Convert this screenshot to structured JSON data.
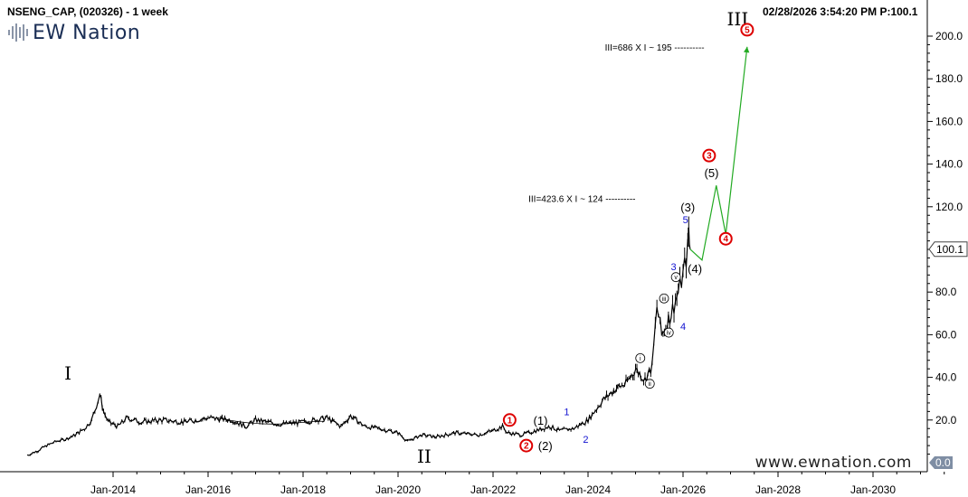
{
  "header": {
    "symbol": "NSENG_CAP, (020326) - 1 week",
    "timestamp": "02/28/2026 3:54:20 PM",
    "last_price_label": "P:100.1"
  },
  "logo": {
    "text": "EW Nation",
    "icon": "equalizer-bars-icon"
  },
  "footer": {
    "website": "www.ewnation.com"
  },
  "colors": {
    "price": "#000000",
    "projection": "#22aa22",
    "red_circle": "#dd0000",
    "blue_label": "#1010d0"
  },
  "chart_data": {
    "type": "line",
    "title": "NSENG_CAP, (020326) - 1 week",
    "y_axis": {
      "position": "right",
      "min": 0,
      "max": 210,
      "ticks": [
        "20.0",
        "40.0",
        "60.0",
        "80.0",
        "100.0",
        "120.0",
        "140.0",
        "160.0",
        "180.0",
        "200.0"
      ],
      "last_value_tag": "100.1",
      "bottom_tag": "0.0"
    },
    "x_axis": {
      "ticks": [
        "Jan-2014",
        "Jan-2016",
        "Jan-2018",
        "Jan-2020",
        "Jan-2022",
        "Jan-2024",
        "Jan-2026",
        "Jan-2028",
        "Jan-2030"
      ],
      "tick_years": [
        2014,
        2016,
        2018,
        2020,
        2022,
        2024,
        2026,
        2028,
        2030
      ]
    },
    "grid": false,
    "series": [
      {
        "style": "weekly-bars",
        "points": [
          [
            2012.2,
            3.5
          ],
          [
            2012.4,
            5.5
          ],
          [
            2012.6,
            8
          ],
          [
            2012.8,
            10
          ],
          [
            2013.0,
            11
          ],
          [
            2013.2,
            13
          ],
          [
            2013.4,
            16
          ],
          [
            2013.55,
            20
          ],
          [
            2013.65,
            27
          ],
          [
            2013.72,
            32
          ],
          [
            2013.8,
            24
          ],
          [
            2013.9,
            19
          ],
          [
            2014.1,
            17
          ],
          [
            2014.3,
            21
          ],
          [
            2014.6,
            19
          ],
          [
            2015.0,
            20
          ],
          [
            2015.5,
            19
          ],
          [
            2016.0,
            21
          ],
          [
            2016.5,
            20
          ],
          [
            2016.8,
            17
          ],
          [
            2017.0,
            20
          ],
          [
            2017.5,
            18
          ],
          [
            2018.0,
            19
          ],
          [
            2018.5,
            21
          ],
          [
            2018.8,
            17
          ],
          [
            2019.0,
            22
          ],
          [
            2019.3,
            17
          ],
          [
            2019.6,
            16
          ],
          [
            2020.0,
            14
          ],
          [
            2020.2,
            10
          ],
          [
            2020.5,
            13
          ],
          [
            2020.8,
            12
          ],
          [
            2021.2,
            14
          ],
          [
            2021.7,
            13
          ],
          [
            2022.0,
            15
          ],
          [
            2022.2,
            17
          ],
          [
            2022.3,
            14
          ],
          [
            2022.6,
            13
          ],
          [
            2022.9,
            15
          ],
          [
            2023.2,
            17
          ],
          [
            2023.4,
            15
          ],
          [
            2023.7,
            16
          ],
          [
            2024.0,
            20
          ],
          [
            2024.3,
            29
          ],
          [
            2024.6,
            35
          ],
          [
            2024.8,
            37
          ],
          [
            2025.0,
            44
          ],
          [
            2025.2,
            39
          ],
          [
            2025.35,
            45
          ],
          [
            2025.45,
            73
          ],
          [
            2025.55,
            60
          ],
          [
            2025.75,
            70
          ],
          [
            2025.9,
            80
          ],
          [
            2026.0,
            88
          ],
          [
            2026.1,
            100
          ],
          [
            2026.12,
            110
          ],
          [
            2026.15,
            100.1
          ]
        ]
      },
      {
        "name": "projection",
        "style": "projection-line",
        "points": [
          [
            2026.15,
            100.1
          ],
          [
            2026.4,
            95
          ],
          [
            2026.7,
            130
          ],
          [
            2026.9,
            107
          ],
          [
            2027.35,
            195
          ]
        ]
      }
    ],
    "trend_arc": [
      [
        2016.2,
        21
      ],
      [
        2017.0,
        19
      ],
      [
        2017.8,
        18.5
      ],
      [
        2018.4,
        19
      ]
    ],
    "annotations": [
      {
        "text": "III=686 X I ~ 195 ----------",
        "x": 2026.45,
        "y": 195,
        "style": "note"
      },
      {
        "text": "III=423.6 X I ~ 124 ----------",
        "x": 2025.0,
        "y": 124,
        "style": "note"
      }
    ],
    "wave_labels": [
      {
        "text": "I",
        "x": 2013.05,
        "y": 42,
        "style": "degree"
      },
      {
        "text": "II",
        "x": 2020.55,
        "y": 3,
        "style": "degree"
      },
      {
        "text": "III",
        "x": 2027.15,
        "y": 208,
        "style": "degree"
      },
      {
        "text": "1",
        "x": 2022.35,
        "y": 20,
        "style": "red-circle"
      },
      {
        "text": "2",
        "x": 2022.7,
        "y": 8,
        "style": "red-circle"
      },
      {
        "text": "3",
        "x": 2026.55,
        "y": 144,
        "style": "red-circle"
      },
      {
        "text": "4",
        "x": 2026.9,
        "y": 105,
        "style": "red-circle"
      },
      {
        "text": "5",
        "x": 2027.35,
        "y": 203,
        "style": "red-circle"
      },
      {
        "text": "(1)",
        "x": 2023.0,
        "y": 20,
        "style": "paren"
      },
      {
        "text": "(2)",
        "x": 2023.1,
        "y": 8,
        "style": "paren"
      },
      {
        "text": "(3)",
        "x": 2026.1,
        "y": 120,
        "style": "paren"
      },
      {
        "text": "(4)",
        "x": 2026.25,
        "y": 91,
        "style": "paren"
      },
      {
        "text": "(5)",
        "x": 2026.6,
        "y": 136,
        "style": "paren"
      },
      {
        "text": "1",
        "x": 2023.55,
        "y": 24,
        "style": "blue"
      },
      {
        "text": "2",
        "x": 2023.95,
        "y": 11,
        "style": "blue"
      },
      {
        "text": "3",
        "x": 2025.8,
        "y": 92,
        "style": "blue"
      },
      {
        "text": "4",
        "x": 2026.0,
        "y": 64,
        "style": "blue"
      },
      {
        "text": "5",
        "x": 2026.05,
        "y": 114,
        "style": "blue"
      },
      {
        "text": "i",
        "x": 2025.1,
        "y": 49,
        "style": "black-circle"
      },
      {
        "text": "ii",
        "x": 2025.3,
        "y": 37,
        "style": "black-circle"
      },
      {
        "text": "iii",
        "x": 2025.6,
        "y": 77,
        "style": "black-circle"
      },
      {
        "text": "iv",
        "x": 2025.7,
        "y": 61,
        "style": "black-circle"
      },
      {
        "text": "v",
        "x": 2025.85,
        "y": 87,
        "style": "black-circle"
      }
    ]
  }
}
